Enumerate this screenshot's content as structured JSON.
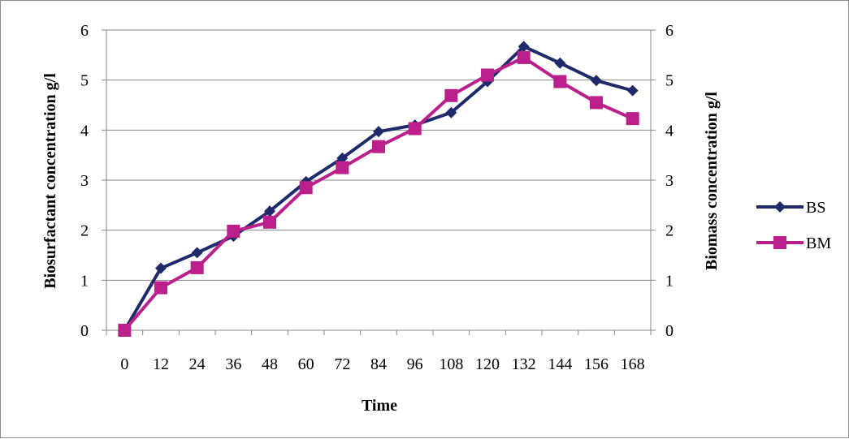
{
  "chart_data": {
    "type": "line",
    "title": "",
    "xlabel": "Time",
    "ylabel_left": "Biosurfactant concentration g/l",
    "ylabel_right": "Biomass concentration g/l",
    "x": [
      "0",
      "12",
      "24",
      "36",
      "48",
      "60",
      "72",
      "84",
      "96",
      "108",
      "120",
      "132",
      "144",
      "156",
      "168"
    ],
    "ylim": [
      0,
      6
    ],
    "yticks": [
      "0",
      "1",
      "2",
      "3",
      "4",
      "5",
      "6"
    ],
    "grid": true,
    "legend_position": "right",
    "series": [
      {
        "name": "BS",
        "color": "#1f2a6b",
        "marker": "diamond",
        "values": [
          0,
          1.24,
          1.55,
          1.88,
          2.38,
          2.97,
          3.44,
          3.97,
          4.1,
          4.35,
          4.97,
          5.67,
          5.34,
          4.99,
          4.79
        ]
      },
      {
        "name": "BM",
        "color": "#bb1f8c",
        "marker": "square",
        "values": [
          0,
          0.85,
          1.25,
          1.98,
          2.16,
          2.85,
          3.25,
          3.67,
          4.03,
          4.69,
          5.1,
          5.45,
          4.97,
          4.55,
          4.23
        ]
      }
    ]
  }
}
